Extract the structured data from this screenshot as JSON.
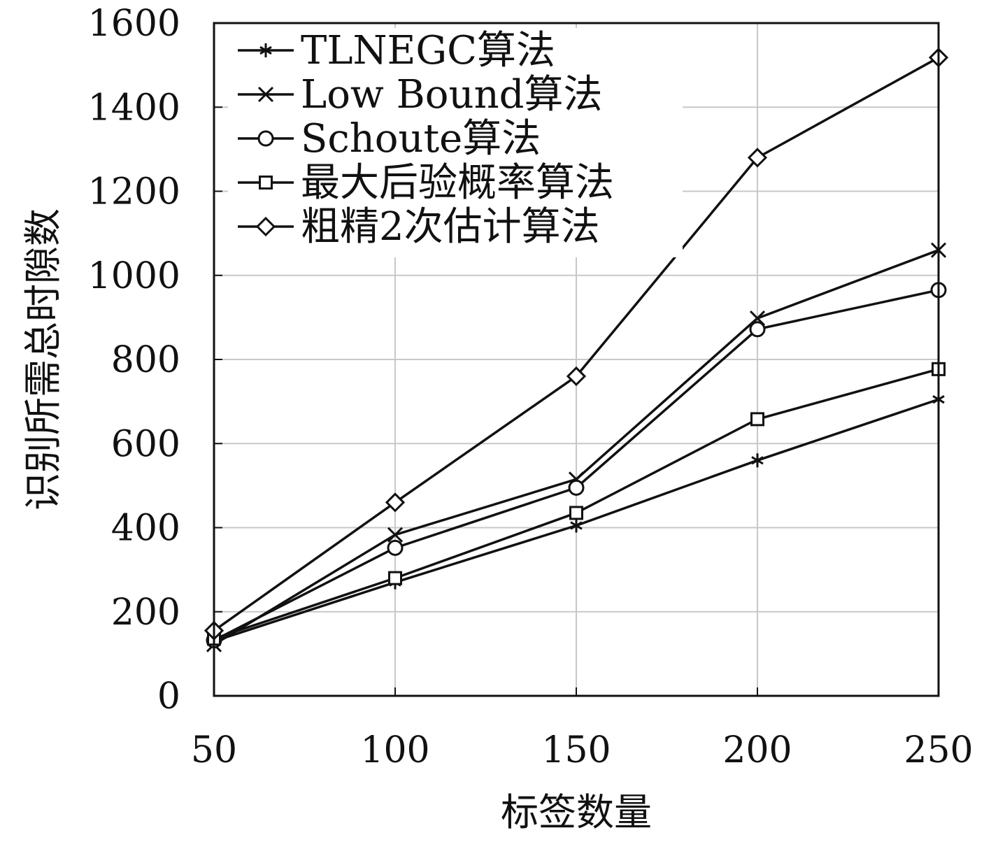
{
  "chart_data": {
    "type": "line",
    "title": "",
    "xlabel": "标签数量",
    "ylabel": "识别所需总时隙数",
    "x": [
      50,
      100,
      150,
      200,
      250
    ],
    "xlim": [
      50,
      250
    ],
    "ylim": [
      0,
      1600
    ],
    "xticks": [
      "50",
      "100",
      "150",
      "200",
      "250"
    ],
    "yticks": [
      "0",
      "200",
      "400",
      "600",
      "800",
      "1000",
      "1200",
      "1400",
      "1600"
    ],
    "grid": true,
    "legend_position": "top-left",
    "series": [
      {
        "name": "TLNEGC算法",
        "marker": "asterisk",
        "values": [
          130,
          270,
          405,
          560,
          705
        ]
      },
      {
        "name": "Low Bound算法",
        "marker": "x",
        "values": [
          122,
          383,
          515,
          898,
          1060
        ]
      },
      {
        "name": "Schoute算法",
        "marker": "circle",
        "values": [
          132,
          352,
          495,
          872,
          965
        ]
      },
      {
        "name": "最大后验概率算法",
        "marker": "square",
        "values": [
          136,
          280,
          435,
          658,
          777
        ]
      },
      {
        "name": "粗精2次估计算法",
        "marker": "diamond",
        "values": [
          155,
          460,
          760,
          1280,
          1518
        ]
      }
    ],
    "colors": {
      "line": "#111111",
      "grid": "#c8c8c8",
      "background": "#ffffff"
    }
  }
}
